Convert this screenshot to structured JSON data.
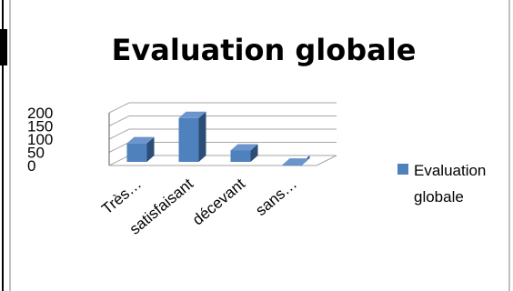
{
  "chart_data": {
    "type": "bar",
    "title": "Evaluation globale",
    "categories": [
      "Très…",
      "satisfaisant",
      "décevant",
      "sans…"
    ],
    "series": [
      {
        "name": "Evaluation globale",
        "values": [
          84,
          180,
          57,
          3
        ]
      }
    ],
    "yticks": [
      0,
      50,
      100,
      150,
      200
    ],
    "ylim": [
      0,
      200
    ],
    "legend": {
      "position": "right",
      "lines": [
        "Evaluation",
        "globale"
      ]
    },
    "grid": true,
    "three_d": true,
    "colors": {
      "bar_front": "#4F81BD",
      "bar_side": "#2C4D75",
      "bar_top": "#6B95CC",
      "grid": "#A6A6A6",
      "frame": "#595959"
    }
  }
}
